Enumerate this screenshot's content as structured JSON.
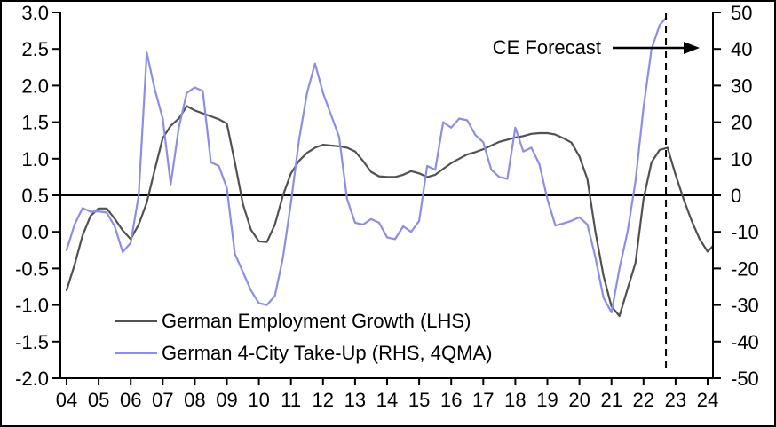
{
  "chart_data": {
    "type": "line",
    "title": "",
    "background_color": "#ffffff",
    "frame_color": "#000000",
    "grid": "off",
    "x_axis": {
      "range": [
        2003.8,
        2024.3
      ],
      "tick_values": [
        2004,
        2005,
        2006,
        2007,
        2008,
        2009,
        2010,
        2011,
        2012,
        2013,
        2014,
        2015,
        2016,
        2017,
        2018,
        2019,
        2020,
        2021,
        2022,
        2023,
        2024
      ],
      "tick_labels": [
        "04",
        "05",
        "06",
        "07",
        "08",
        "09",
        "10",
        "11",
        "12",
        "13",
        "14",
        "15",
        "16",
        "17",
        "18",
        "19",
        "20",
        "21",
        "22",
        "23",
        "24"
      ]
    },
    "left_axis": {
      "range": [
        -2.0,
        3.0
      ],
      "tick_values": [
        3.0,
        2.5,
        2.0,
        1.5,
        1.0,
        0.5,
        0.0,
        -0.5,
        -1.0,
        -1.5,
        -2.0
      ],
      "tick_labels": [
        "3.0",
        "2.5",
        "2.0",
        "1.5",
        "1.0",
        "0.5",
        "0.0",
        "-0.5",
        "-1.0",
        "-1.5",
        "-2.0"
      ]
    },
    "right_axis": {
      "range": [
        -50,
        50
      ],
      "tick_values": [
        50,
        40,
        30,
        20,
        10,
        0,
        -10,
        -20,
        -30,
        -40,
        -50
      ],
      "tick_labels": [
        "50",
        "40",
        "30",
        "20",
        "10",
        "0",
        "-10",
        "-20",
        "-30",
        "-40",
        "-50"
      ]
    },
    "baseline": {
      "left_value": 0.5,
      "right_value": 0
    },
    "forecast_marker": {
      "x": 2022.7,
      "style": "dashed-vertical"
    },
    "annotation": {
      "label": "CE Forecast",
      "arrow_direction": "right"
    },
    "legend": {
      "position": "inside-bottom-left",
      "entries": [
        "German Employment Growth (LHS)",
        "German 4-City Take-Up (RHS, 4QMA)"
      ]
    },
    "series": [
      {
        "name": "German Employment Growth (LHS)",
        "axis": "left",
        "color": "#515151",
        "x": [
          2004.0,
          2004.25,
          2004.5,
          2004.75,
          2005.0,
          2005.25,
          2005.5,
          2005.75,
          2006.0,
          2006.25,
          2006.5,
          2006.75,
          2007.0,
          2007.25,
          2007.5,
          2007.75,
          2008.0,
          2008.25,
          2008.5,
          2008.75,
          2009.0,
          2009.25,
          2009.5,
          2009.75,
          2010.0,
          2010.25,
          2010.5,
          2010.75,
          2011.0,
          2011.25,
          2011.5,
          2011.75,
          2012.0,
          2012.25,
          2012.5,
          2012.75,
          2013.0,
          2013.25,
          2013.5,
          2013.75,
          2014.0,
          2014.25,
          2014.5,
          2014.75,
          2015.0,
          2015.25,
          2015.5,
          2015.75,
          2016.0,
          2016.25,
          2016.5,
          2016.75,
          2017.0,
          2017.25,
          2017.5,
          2017.75,
          2018.0,
          2018.25,
          2018.5,
          2018.75,
          2019.0,
          2019.25,
          2019.5,
          2019.75,
          2020.0,
          2020.25,
          2020.5,
          2020.75,
          2021.0,
          2021.25,
          2021.5,
          2021.75,
          2022.0,
          2022.25,
          2022.5,
          2022.75,
          2023.0,
          2023.25,
          2023.5,
          2023.75,
          2024.0,
          2024.15
        ],
        "values": [
          -0.8,
          -0.45,
          -0.05,
          0.22,
          0.32,
          0.32,
          0.18,
          0.02,
          -0.1,
          0.1,
          0.4,
          0.85,
          1.28,
          1.45,
          1.55,
          1.72,
          1.66,
          1.62,
          1.58,
          1.54,
          1.48,
          0.95,
          0.38,
          0.03,
          -0.13,
          -0.14,
          0.1,
          0.5,
          0.8,
          0.97,
          1.08,
          1.15,
          1.19,
          1.18,
          1.17,
          1.15,
          1.1,
          0.97,
          0.82,
          0.76,
          0.75,
          0.75,
          0.78,
          0.83,
          0.8,
          0.75,
          0.78,
          0.86,
          0.94,
          1.0,
          1.06,
          1.09,
          1.13,
          1.18,
          1.23,
          1.26,
          1.29,
          1.31,
          1.34,
          1.35,
          1.35,
          1.33,
          1.28,
          1.22,
          1.03,
          0.72,
          0.0,
          -0.6,
          -1.02,
          -1.15,
          -0.78,
          -0.42,
          0.45,
          0.95,
          1.12,
          1.15,
          0.78,
          0.45,
          0.15,
          -0.1,
          -0.27,
          -0.2
        ]
      },
      {
        "name": "German 4-City Take-Up (RHS, 4QMA)",
        "axis": "right",
        "color": "#8d8de8",
        "x": [
          2004.0,
          2004.25,
          2004.5,
          2004.75,
          2005.0,
          2005.25,
          2005.5,
          2005.75,
          2006.0,
          2006.25,
          2006.5,
          2006.75,
          2007.0,
          2007.25,
          2007.5,
          2007.75,
          2008.0,
          2008.25,
          2008.5,
          2008.75,
          2009.0,
          2009.25,
          2009.5,
          2009.75,
          2010.0,
          2010.25,
          2010.5,
          2010.75,
          2011.0,
          2011.25,
          2011.5,
          2011.75,
          2012.0,
          2012.25,
          2012.5,
          2012.75,
          2013.0,
          2013.25,
          2013.5,
          2013.75,
          2014.0,
          2014.25,
          2014.5,
          2014.75,
          2015.0,
          2015.25,
          2015.5,
          2015.75,
          2016.0,
          2016.25,
          2016.5,
          2016.75,
          2017.0,
          2017.25,
          2017.5,
          2017.75,
          2018.0,
          2018.25,
          2018.5,
          2018.75,
          2019.0,
          2019.25,
          2019.5,
          2019.75,
          2020.0,
          2020.25,
          2020.5,
          2020.75,
          2021.0,
          2021.25,
          2021.5,
          2021.75,
          2022.0,
          2022.25,
          2022.5,
          2022.7
        ],
        "values": [
          -15,
          -8,
          -3.5,
          -4.5,
          -4.4,
          -4.7,
          -8.5,
          -15.5,
          -13,
          0,
          39,
          29,
          21,
          3,
          18.5,
          28,
          29.5,
          28.5,
          9,
          8,
          2,
          -16,
          -21,
          -26,
          -29.5,
          -30,
          -27.5,
          -17,
          -2,
          15,
          28,
          36,
          28,
          22,
          16,
          -1,
          -7.5,
          -8,
          -6.5,
          -7.5,
          -11.5,
          -12,
          -8.5,
          -10,
          -7,
          8,
          7,
          20,
          18.5,
          21,
          20.5,
          16.5,
          14.5,
          7,
          5,
          4.5,
          18.5,
          12,
          13,
          8.5,
          -1,
          -8.3,
          -7.7,
          -7,
          -6,
          -8,
          -17,
          -28,
          -32,
          -20,
          -10,
          4,
          24,
          40,
          46.5,
          48.5
        ]
      }
    ]
  }
}
